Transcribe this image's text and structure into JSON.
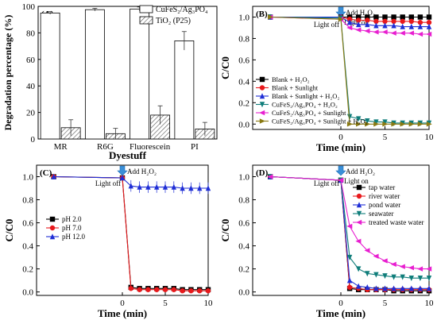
{
  "chart_data": [
    {
      "panel": "(A)",
      "type": "bar",
      "xlabel": "Dyestuff",
      "ylabel": "Degradation percentage (%)",
      "ylim": [
        0,
        100
      ],
      "yticks": [
        0,
        20,
        40,
        60,
        80,
        100
      ],
      "categories": [
        "MR",
        "R6G",
        "Fluorescein",
        "PI"
      ],
      "legend_position": "top-right",
      "series": [
        {
          "name": "CuFeS₂/Ag₃PO₄",
          "pattern": "open",
          "values": [
            95,
            97.5,
            98,
            74
          ],
          "errors": [
            1,
            1,
            1.5,
            7
          ]
        },
        {
          "name": "TiO₂ (P25)",
          "pattern": "hatched",
          "values": [
            8.5,
            4,
            18,
            7.5
          ],
          "errors": [
            6,
            4,
            7,
            5
          ]
        }
      ]
    },
    {
      "panel": "(B)",
      "type": "line",
      "xlabel": "Time (min)",
      "ylabel": "C/C0",
      "xlim": [
        -10,
        10
      ],
      "ylim": [
        -0.05,
        1.1
      ],
      "xticks": [
        0,
        5,
        10
      ],
      "yticks": [
        0.0,
        0.2,
        0.4,
        0.6,
        0.8,
        1.0
      ],
      "annotations": {
        "light_off": "Light off",
        "add": "Add H₂O₂",
        "light_on": "Light on"
      },
      "legend_position": "bottom-right",
      "series": [
        {
          "name": "Blank + H₂O₂",
          "color": "#000000",
          "marker": "square",
          "x": [
            -8,
            0,
            1,
            2,
            3,
            4,
            5,
            6,
            7,
            8,
            9,
            10
          ],
          "y": [
            1.0,
            1.0,
            1.0,
            1.0,
            1.0,
            1.0,
            1.0,
            1.0,
            1.0,
            1.0,
            1.0,
            1.0
          ]
        },
        {
          "name": "Blank + Sunlight",
          "color": "#e8191c",
          "marker": "circle",
          "x": [
            -8,
            0,
            1,
            2,
            3,
            4,
            5,
            6,
            7,
            8,
            9,
            10
          ],
          "y": [
            1.0,
            1.0,
            0.98,
            0.97,
            0.97,
            0.96,
            0.96,
            0.96,
            0.96,
            0.96,
            0.95,
            0.95
          ]
        },
        {
          "name": "Blank + Sunlight + H₂O₂",
          "color": "#1f2ed6",
          "marker": "triangle",
          "x": [
            -8,
            0,
            1,
            2,
            3,
            4,
            5,
            6,
            7,
            8,
            9,
            10
          ],
          "y": [
            1.0,
            1.0,
            0.95,
            0.93,
            0.93,
            0.92,
            0.92,
            0.92,
            0.91,
            0.91,
            0.91,
            0.91
          ]
        },
        {
          "name": "CuFeS₂/Ag₃PO₄ + H₂O₂",
          "color": "#0f7d7a",
          "marker": "triangle-down",
          "x": [
            -8,
            0,
            1,
            2,
            3,
            4,
            5,
            6,
            7,
            8,
            9,
            10
          ],
          "y": [
            1.0,
            0.99,
            0.07,
            0.05,
            0.03,
            0.02,
            0.02,
            0.01,
            0.01,
            0.01,
            0.01,
            0.01
          ]
        },
        {
          "name": "CuFeS₂/Ag₃PO₄ + Sunlight",
          "color": "#e81fd0",
          "marker": "triangle-left",
          "x": [
            -8,
            0,
            1,
            2,
            3,
            4,
            5,
            6,
            7,
            8,
            9,
            10
          ],
          "y": [
            1.0,
            0.98,
            0.9,
            0.88,
            0.87,
            0.86,
            0.86,
            0.85,
            0.85,
            0.85,
            0.84,
            0.84
          ]
        },
        {
          "name": "CuFeS₂/Ag₃PO₄ + Sunlight + H₂O₂",
          "color": "#8a7a12",
          "marker": "triangle-right",
          "x": [
            -8,
            0,
            1,
            2,
            3,
            4,
            5,
            6,
            7,
            8,
            9,
            10
          ],
          "y": [
            1.0,
            0.98,
            0.0,
            0.0,
            0.0,
            0.0,
            0.0,
            0.0,
            0.0,
            0.0,
            0.0,
            0.0
          ]
        }
      ]
    },
    {
      "panel": "(C)",
      "type": "line",
      "xlabel": "Time (min)",
      "ylabel": "C/C0",
      "xlim": [
        -10,
        10
      ],
      "ylim": [
        -0.03,
        1.1
      ],
      "xticks": [
        0,
        5,
        10
      ],
      "yticks": [
        0.0,
        0.2,
        0.4,
        0.6,
        0.8,
        1.0
      ],
      "annotations": {
        "light_off": "Light off",
        "add": "Add H₂O₂",
        "light_on": ""
      },
      "legend_position": "left",
      "series": [
        {
          "name": "pH 2.0",
          "color": "#000000",
          "marker": "square",
          "x": [
            -8,
            0,
            1,
            2,
            3,
            4,
            5,
            6,
            7,
            8,
            9,
            10
          ],
          "y": [
            1.0,
            0.99,
            0.04,
            0.03,
            0.03,
            0.03,
            0.03,
            0.03,
            0.02,
            0.02,
            0.02,
            0.02
          ]
        },
        {
          "name": "pH 7.0",
          "color": "#e8191c",
          "marker": "circle",
          "x": [
            -8,
            0,
            1,
            2,
            3,
            4,
            5,
            6,
            7,
            8,
            9,
            10
          ],
          "y": [
            1.0,
            0.99,
            0.03,
            0.02,
            0.02,
            0.02,
            0.02,
            0.02,
            0.01,
            0.01,
            0.01,
            0.01
          ]
        },
        {
          "name": "pH 12.0",
          "color": "#1f2ed6",
          "marker": "triangle",
          "x": [
            -8,
            0,
            1,
            2,
            3,
            4,
            5,
            6,
            7,
            8,
            9,
            10
          ],
          "y": [
            1.0,
            0.99,
            0.92,
            0.91,
            0.91,
            0.91,
            0.91,
            0.91,
            0.9,
            0.9,
            0.9,
            0.9
          ]
        }
      ]
    },
    {
      "panel": "(D)",
      "type": "line",
      "xlabel": "Time (min)",
      "ylabel": "C/C0",
      "xlim": [
        -10,
        10
      ],
      "ylim": [
        -0.03,
        1.1
      ],
      "xticks": [
        0,
        5,
        10
      ],
      "yticks": [
        0.0,
        0.2,
        0.4,
        0.6,
        0.8,
        1.0
      ],
      "annotations": {
        "light_off": "Light off",
        "add": "Add H₂O₂",
        "light_on": "Light on"
      },
      "legend_position": "top-right",
      "series": [
        {
          "name": "tap water",
          "color": "#000000",
          "marker": "square",
          "x": [
            -8,
            0,
            1,
            2,
            3,
            4,
            5,
            6,
            7,
            8,
            9,
            10
          ],
          "y": [
            1.0,
            0.97,
            0.03,
            0.02,
            0.02,
            0.02,
            0.02,
            0.01,
            0.01,
            0.01,
            0.01,
            0.01
          ]
        },
        {
          "name": "river water",
          "color": "#e8191c",
          "marker": "circle",
          "x": [
            -8,
            0,
            1,
            2,
            3,
            4,
            5,
            6,
            7,
            8,
            9,
            10
          ],
          "y": [
            1.0,
            0.97,
            0.04,
            0.03,
            0.02,
            0.02,
            0.02,
            0.02,
            0.02,
            0.02,
            0.02,
            0.02
          ]
        },
        {
          "name": "pond water",
          "color": "#1f2ed6",
          "marker": "triangle",
          "x": [
            -8,
            0,
            1,
            2,
            3,
            4,
            5,
            6,
            7,
            8,
            9,
            10
          ],
          "y": [
            1.0,
            0.97,
            0.1,
            0.05,
            0.04,
            0.03,
            0.03,
            0.03,
            0.03,
            0.03,
            0.03,
            0.03
          ]
        },
        {
          "name": "seawater",
          "color": "#0f7d7a",
          "marker": "triangle-down",
          "x": [
            -8,
            0,
            1,
            2,
            3,
            4,
            5,
            6,
            7,
            8,
            9,
            10
          ],
          "y": [
            1.0,
            0.97,
            0.3,
            0.2,
            0.16,
            0.15,
            0.14,
            0.13,
            0.13,
            0.12,
            0.12,
            0.12
          ]
        },
        {
          "name": "treated waste water",
          "color": "#e81fd0",
          "marker": "triangle-left",
          "x": [
            -8,
            0,
            1,
            2,
            3,
            4,
            5,
            6,
            7,
            8,
            9,
            10
          ],
          "y": [
            1.0,
            0.97,
            0.57,
            0.44,
            0.36,
            0.31,
            0.27,
            0.24,
            0.22,
            0.21,
            0.2,
            0.2
          ]
        }
      ]
    }
  ]
}
